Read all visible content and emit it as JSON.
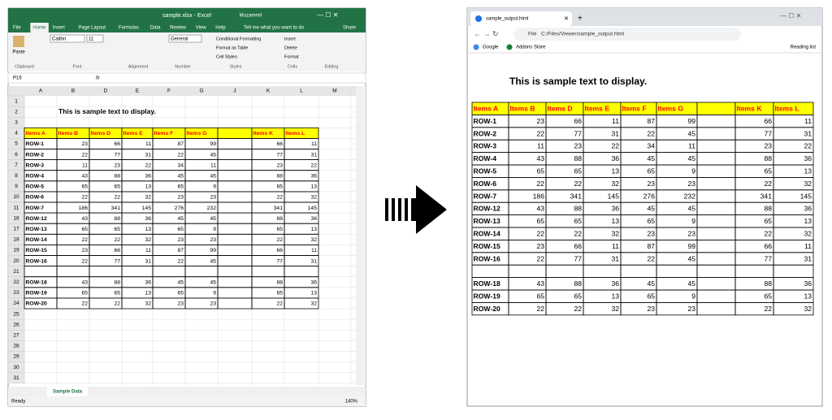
{
  "excel": {
    "title": "sample.xlsx - Excel",
    "user": "Muzammil",
    "tabs": [
      "File",
      "Home",
      "Insert",
      "Page Layout",
      "Formulas",
      "Data",
      "Review",
      "View",
      "Help"
    ],
    "tell_me": "Tell me what you want to do",
    "share": "Share",
    "paste": "Paste",
    "font": "Calibri",
    "font_size": "11",
    "number_format": "General",
    "styles": [
      "Conditional Formatting",
      "Format as Table",
      "Cell Styles"
    ],
    "cells": [
      "Insert",
      "Delete",
      "Format"
    ],
    "groups": [
      "Clipboard",
      "Font",
      "Alignment",
      "Number",
      "Styles",
      "Cells",
      "Editing"
    ],
    "name_box": "P16",
    "fx": "fx",
    "columns": [
      "A",
      "B",
      "D",
      "E",
      "F",
      "G",
      "J",
      "K",
      "L",
      "M"
    ],
    "row_numbers": [
      1,
      2,
      3,
      4,
      5,
      6,
      7,
      8,
      9,
      10,
      11,
      16,
      17,
      18,
      19,
      20,
      21,
      22,
      23,
      24,
      25,
      26,
      27,
      28,
      29,
      30,
      31
    ],
    "sheet_tab": "Sample Data",
    "status": "Ready",
    "zoom": "140%"
  },
  "browser": {
    "tab": "sample_output.html",
    "scheme": "File",
    "url": "C:/Files/Viewer/sample_output.html",
    "bookmarks": [
      "Google",
      "Addons Store"
    ],
    "reading_list": "Reading list"
  },
  "document": {
    "heading": "This is sample text to display.",
    "header": [
      "Items A",
      "Items B",
      "Items D",
      "Items E",
      "Items F",
      "Items G",
      "Items K",
      "Items L"
    ],
    "rows": [
      [
        "ROW-1",
        23,
        66,
        11,
        87,
        99,
        66,
        11
      ],
      [
        "ROW-2",
        22,
        77,
        31,
        22,
        45,
        77,
        31
      ],
      [
        "ROW-3",
        11,
        23,
        22,
        34,
        11,
        23,
        22
      ],
      [
        "ROW-4",
        43,
        88,
        36,
        45,
        45,
        88,
        36
      ],
      [
        "ROW-5",
        65,
        65,
        13,
        65,
        9,
        65,
        13
      ],
      [
        "ROW-6",
        22,
        22,
        32,
        23,
        23,
        22,
        32
      ],
      [
        "ROW-7",
        186,
        341,
        145,
        276,
        232,
        341,
        145
      ],
      [
        "ROW-12",
        43,
        88,
        36,
        45,
        45,
        88,
        36
      ],
      [
        "ROW-13",
        65,
        65,
        13,
        65,
        9,
        65,
        13
      ],
      [
        "ROW-14",
        22,
        22,
        32,
        23,
        23,
        22,
        32
      ],
      [
        "ROW-15",
        23,
        66,
        11,
        87,
        99,
        66,
        11
      ],
      [
        "ROW-16",
        22,
        77,
        31,
        22,
        45,
        77,
        31
      ],
      null,
      [
        "ROW-18",
        43,
        88,
        36,
        45,
        45,
        88,
        36
      ],
      [
        "ROW-19",
        65,
        65,
        13,
        65,
        9,
        65,
        13
      ],
      [
        "ROW-20",
        22,
        22,
        32,
        23,
        23,
        22,
        32
      ]
    ]
  }
}
